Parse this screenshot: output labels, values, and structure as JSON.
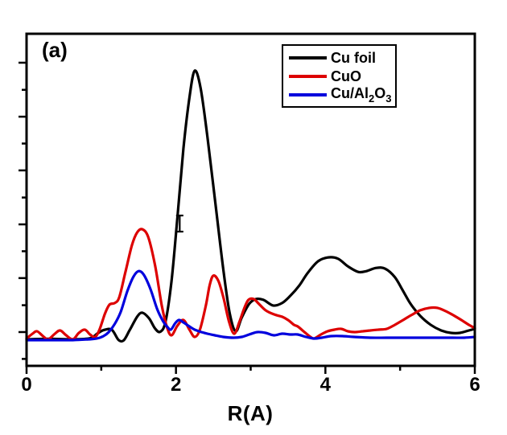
{
  "figure": {
    "panel_label": "(a)",
    "background": "#ffffff",
    "frame_color": "#000000"
  },
  "legend": {
    "items": [
      {
        "label": "Cu foil",
        "color": "#000000",
        "label_parts": [
          {
            "t": "Cu foil"
          }
        ]
      },
      {
        "label": "CuO",
        "color": "#dd0000",
        "label_parts": [
          {
            "t": "CuO"
          }
        ]
      },
      {
        "label": "Cu/Al2O3",
        "color": "#0000dd",
        "label_parts": [
          {
            "t": "Cu/Al"
          },
          {
            "t": "2",
            "sub": true
          },
          {
            "t": "O"
          },
          {
            "t": "3",
            "sub": true
          }
        ]
      }
    ]
  },
  "chart_data": {
    "type": "line",
    "title": "",
    "xlabel": "R(A)",
    "ylabel": "",
    "xlim": [
      0,
      6
    ],
    "x_major_ticks": [
      0,
      2,
      4,
      6
    ],
    "x_minor_ticks": [
      1,
      3,
      5
    ],
    "y_tick_labels_shown": false,
    "y_major_ticks_au": [
      1.03,
      0.829,
      0.629,
      0.428,
      0.228,
      0.027
    ],
    "y_minor_ticks_au": [
      0.929,
      0.729,
      0.528,
      0.328,
      0.127,
      -0.073
    ],
    "grid": false,
    "legend_position": "upper right inside frame",
    "value_units": "a.u. (normalized: Cu foil main peak = 1.0)",
    "series": [
      {
        "name": "Cu foil",
        "color": "#000000",
        "points": [
          [
            0,
            0
          ],
          [
            0.3,
            0.002
          ],
          [
            0.62,
            0
          ],
          [
            0.85,
            0.004
          ],
          [
            0.95,
            0.022
          ],
          [
            1.03,
            0.034
          ],
          [
            1.14,
            0.036
          ],
          [
            1.23,
            -0.002
          ],
          [
            1.3,
            -0.004
          ],
          [
            1.38,
            0.034
          ],
          [
            1.48,
            0.084
          ],
          [
            1.55,
            0.099
          ],
          [
            1.64,
            0.078
          ],
          [
            1.72,
            0.04
          ],
          [
            1.79,
            0.028
          ],
          [
            1.86,
            0.066
          ],
          [
            1.94,
            0.216
          ],
          [
            2.02,
            0.455
          ],
          [
            2.1,
            0.71
          ],
          [
            2.18,
            0.9
          ],
          [
            2.25,
            1.0
          ],
          [
            2.33,
            0.935
          ],
          [
            2.42,
            0.755
          ],
          [
            2.53,
            0.5
          ],
          [
            2.64,
            0.246
          ],
          [
            2.72,
            0.096
          ],
          [
            2.8,
            0.03
          ],
          [
            2.88,
            0.081
          ],
          [
            2.98,
            0.132
          ],
          [
            3.07,
            0.15
          ],
          [
            3.17,
            0.147
          ],
          [
            3.3,
            0.126
          ],
          [
            3.42,
            0.135
          ],
          [
            3.53,
            0.162
          ],
          [
            3.65,
            0.2
          ],
          [
            3.76,
            0.246
          ],
          [
            3.9,
            0.29
          ],
          [
            4.04,
            0.305
          ],
          [
            4.17,
            0.3
          ],
          [
            4.3,
            0.272
          ],
          [
            4.44,
            0.251
          ],
          [
            4.55,
            0.254
          ],
          [
            4.68,
            0.266
          ],
          [
            4.8,
            0.263
          ],
          [
            4.93,
            0.231
          ],
          [
            5.04,
            0.18
          ],
          [
            5.14,
            0.132
          ],
          [
            5.27,
            0.087
          ],
          [
            5.41,
            0.054
          ],
          [
            5.55,
            0.033
          ],
          [
            5.68,
            0.024
          ],
          [
            5.8,
            0.024
          ],
          [
            5.92,
            0.033
          ],
          [
            6,
            0.039
          ]
        ]
      },
      {
        "name": "CuO",
        "color": "#dd0000",
        "points": [
          [
            0,
            0.003
          ],
          [
            0.08,
            0.021
          ],
          [
            0.14,
            0.03
          ],
          [
            0.22,
            0.012
          ],
          [
            0.29,
            0
          ],
          [
            0.38,
            0.021
          ],
          [
            0.45,
            0.033
          ],
          [
            0.53,
            0.015
          ],
          [
            0.62,
            0
          ],
          [
            0.7,
            0.024
          ],
          [
            0.78,
            0.036
          ],
          [
            0.85,
            0.018
          ],
          [
            0.92,
            0.009
          ],
          [
            0.98,
            0.039
          ],
          [
            1.05,
            0.096
          ],
          [
            1.11,
            0.129
          ],
          [
            1.18,
            0.135
          ],
          [
            1.24,
            0.156
          ],
          [
            1.32,
            0.246
          ],
          [
            1.41,
            0.35
          ],
          [
            1.48,
            0.398
          ],
          [
            1.55,
            0.41
          ],
          [
            1.63,
            0.38
          ],
          [
            1.72,
            0.275
          ],
          [
            1.81,
            0.126
          ],
          [
            1.88,
            0.045
          ],
          [
            1.94,
            0.015
          ],
          [
            2.02,
            0.051
          ],
          [
            2.1,
            0.072
          ],
          [
            2.18,
            0.036
          ],
          [
            2.25,
            0.009
          ],
          [
            2.32,
            0.036
          ],
          [
            2.4,
            0.126
          ],
          [
            2.45,
            0.2
          ],
          [
            2.5,
            0.237
          ],
          [
            2.57,
            0.216
          ],
          [
            2.64,
            0.15
          ],
          [
            2.71,
            0.066
          ],
          [
            2.78,
            0.021
          ],
          [
            2.85,
            0.066
          ],
          [
            2.92,
            0.12
          ],
          [
            2.97,
            0.147
          ],
          [
            3.04,
            0.15
          ],
          [
            3.11,
            0.132
          ],
          [
            3.2,
            0.108
          ],
          [
            3.31,
            0.093
          ],
          [
            3.42,
            0.084
          ],
          [
            3.5,
            0.072
          ],
          [
            3.58,
            0.054
          ],
          [
            3.63,
            0.048
          ],
          [
            3.72,
            0.027
          ],
          [
            3.8,
            0.009
          ],
          [
            3.85,
            0.003
          ],
          [
            3.94,
            0.018
          ],
          [
            4.03,
            0.03
          ],
          [
            4.12,
            0.036
          ],
          [
            4.21,
            0.039
          ],
          [
            4.3,
            0.03
          ],
          [
            4.39,
            0.027
          ],
          [
            4.5,
            0.03
          ],
          [
            4.6,
            0.033
          ],
          [
            4.71,
            0.036
          ],
          [
            4.82,
            0.039
          ],
          [
            4.93,
            0.054
          ],
          [
            5.04,
            0.072
          ],
          [
            5.15,
            0.09
          ],
          [
            5.27,
            0.108
          ],
          [
            5.39,
            0.117
          ],
          [
            5.5,
            0.117
          ],
          [
            5.61,
            0.105
          ],
          [
            5.71,
            0.09
          ],
          [
            5.82,
            0.072
          ],
          [
            5.92,
            0.054
          ],
          [
            6,
            0.042
          ]
        ]
      },
      {
        "name": "Cu/Al2O3",
        "color": "#0000dd",
        "points": [
          [
            0,
            -0.003
          ],
          [
            0.3,
            -0.003
          ],
          [
            0.62,
            -0.003
          ],
          [
            0.83,
            0
          ],
          [
            0.94,
            0.003
          ],
          [
            1.03,
            0.012
          ],
          [
            1.1,
            0.027
          ],
          [
            1.18,
            0.057
          ],
          [
            1.26,
            0.102
          ],
          [
            1.35,
            0.18
          ],
          [
            1.43,
            0.233
          ],
          [
            1.5,
            0.254
          ],
          [
            1.57,
            0.24
          ],
          [
            1.66,
            0.186
          ],
          [
            1.75,
            0.111
          ],
          [
            1.83,
            0.066
          ],
          [
            1.88,
            0.048
          ],
          [
            1.93,
            0.036
          ],
          [
            1.99,
            0.06
          ],
          [
            2.04,
            0.072
          ],
          [
            2.1,
            0.063
          ],
          [
            2.18,
            0.048
          ],
          [
            2.25,
            0.036
          ],
          [
            2.34,
            0.027
          ],
          [
            2.42,
            0.021
          ],
          [
            2.52,
            0.015
          ],
          [
            2.63,
            0.009
          ],
          [
            2.77,
            0.006
          ],
          [
            2.88,
            0.009
          ],
          [
            2.98,
            0.018
          ],
          [
            3.09,
            0.027
          ],
          [
            3.2,
            0.024
          ],
          [
            3.31,
            0.015
          ],
          [
            3.42,
            0.021
          ],
          [
            3.53,
            0.018
          ],
          [
            3.63,
            0.018
          ],
          [
            3.74,
            0.009
          ],
          [
            3.85,
            0.003
          ],
          [
            3.95,
            0.006
          ],
          [
            4.08,
            0.012
          ],
          [
            4.23,
            0.012
          ],
          [
            4.38,
            0.009
          ],
          [
            4.6,
            0.006
          ],
          [
            4.82,
            0.006
          ],
          [
            5.04,
            0.006
          ],
          [
            5.26,
            0.006
          ],
          [
            5.48,
            0.006
          ],
          [
            5.7,
            0.006
          ],
          [
            5.86,
            0.006
          ],
          [
            6,
            0.009
          ]
        ]
      }
    ],
    "annotations": [
      {
        "type": "error-bar",
        "r": 2.05,
        "value_top": 0.461,
        "value_bottom": 0.401,
        "color": "#000000"
      }
    ]
  }
}
